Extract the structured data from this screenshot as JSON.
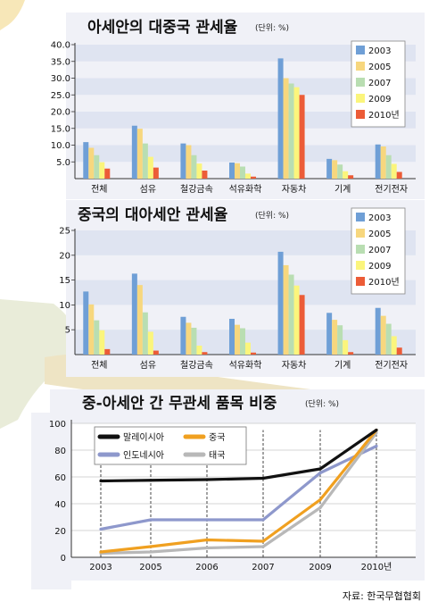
{
  "source": "자료: 한국무협협회",
  "chart_data": [
    {
      "type": "bar",
      "title": "아세안의 대중국 관세율",
      "unit": "(단위: %)",
      "categories": [
        "전체",
        "섬유",
        "철강금속",
        "석유화학",
        "자동차",
        "기계",
        "전기전자"
      ],
      "yticks": [
        "40.0",
        "35.0",
        "30.0",
        "25.0",
        "20.0",
        "15.0",
        "10.0",
        "5.0"
      ],
      "ylim": [
        0,
        40
      ],
      "legend": "top-right",
      "series": [
        {
          "name": "2003",
          "color": "#6f9fd6",
          "values": [
            10.9,
            15.8,
            10.5,
            4.8,
            35.9,
            5.9,
            10.2
          ]
        },
        {
          "name": "2005",
          "color": "#f7d77e",
          "values": [
            9.2,
            14.9,
            10.0,
            4.6,
            30.0,
            5.5,
            9.6
          ]
        },
        {
          "name": "2007",
          "color": "#b9deb2",
          "values": [
            7.0,
            10.5,
            7.0,
            3.6,
            28.4,
            4.2,
            7.0
          ]
        },
        {
          "name": "2009",
          "color": "#fbf57c",
          "values": [
            4.9,
            6.5,
            4.5,
            1.5,
            27.3,
            2.2,
            4.4
          ]
        },
        {
          "name": "2010년",
          "color": "#ec5c37",
          "values": [
            3.0,
            3.3,
            2.4,
            0.6,
            25.0,
            1.0,
            2.0
          ]
        }
      ]
    },
    {
      "type": "bar",
      "title": "중국의 대아세안 관세율",
      "unit": "(단위: %)",
      "categories": [
        "전체",
        "섬유",
        "철강금속",
        "석유화학",
        "자동차",
        "기계",
        "전기전자"
      ],
      "yticks": [
        "25",
        "20",
        "15",
        "10",
        "5"
      ],
      "ylim": [
        0,
        25
      ],
      "legend": "top-right",
      "series": [
        {
          "name": "2003",
          "color": "#6f9fd6",
          "values": [
            12.7,
            16.3,
            7.6,
            7.2,
            20.7,
            8.4,
            9.4
          ]
        },
        {
          "name": "2005",
          "color": "#f7d77e",
          "values": [
            10.1,
            14.0,
            6.4,
            6.0,
            18.0,
            7.0,
            7.8
          ]
        },
        {
          "name": "2007",
          "color": "#b9deb2",
          "values": [
            6.9,
            8.5,
            5.4,
            5.3,
            16.1,
            5.9,
            6.2
          ]
        },
        {
          "name": "2009",
          "color": "#fbf57c",
          "values": [
            4.9,
            4.6,
            1.8,
            2.4,
            13.9,
            2.9,
            3.7
          ]
        },
        {
          "name": "2010년",
          "color": "#ec5c37",
          "values": [
            1.1,
            0.8,
            0.5,
            0.4,
            12.0,
            0.5,
            1.4
          ]
        }
      ]
    },
    {
      "type": "line",
      "title": "중-아세안 간 무관세 품목 비중",
      "unit": "(단위: %)",
      "categories": [
        "2003",
        "2005",
        "2006",
        "2007",
        "2009",
        "2010년"
      ],
      "yticks": [
        "100",
        "80",
        "60",
        "40",
        "20",
        "0"
      ],
      "ylim": [
        0,
        100
      ],
      "legend": "top-left",
      "series": [
        {
          "name": "말레이시아",
          "color": "#111111",
          "values": [
            57,
            57.5,
            58,
            59,
            66,
            95
          ]
        },
        {
          "name": "중국",
          "color": "#f0a020",
          "values": [
            4,
            8,
            13,
            12,
            43,
            95
          ]
        },
        {
          "name": "인도네시아",
          "color": "#8e98cc",
          "values": [
            21,
            28,
            28,
            28,
            63,
            83
          ]
        },
        {
          "name": "태국",
          "color": "#b8b8b8",
          "values": [
            3,
            4,
            7,
            8,
            37,
            93
          ]
        }
      ]
    }
  ]
}
